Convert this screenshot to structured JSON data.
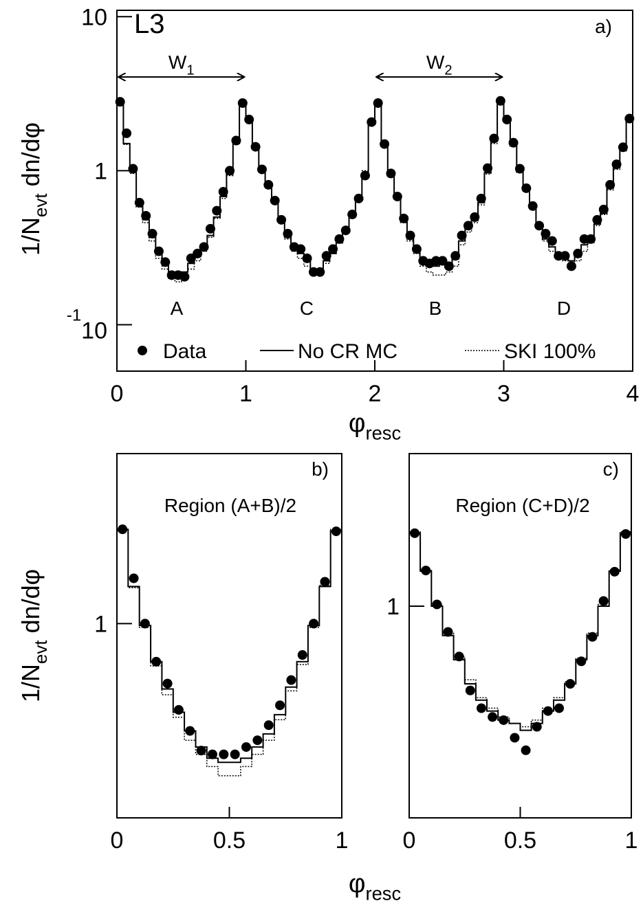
{
  "chart_data": [
    {
      "type": "histogram",
      "log_y": true,
      "legend": "bottom",
      "annotations": [
        {
          "text": "L3"
        },
        {
          "text": "a)"
        },
        {
          "text": "A"
        },
        {
          "text": "C"
        },
        {
          "text": "B"
        },
        {
          "text": "D"
        }
      ],
      "arrows": [
        {
          "text": "W",
          "sub": "1"
        },
        {
          "text": "W",
          "sub": "2"
        }
      ],
      "xlabel": {
        "text": "φ",
        "sub": "resc"
      },
      "ylabel": {
        "text": "1/N",
        "sub": "evt",
        "rest": " dn/dφ"
      },
      "xlim": [
        0,
        4
      ],
      "xticks": [
        0,
        1,
        2,
        3,
        4
      ],
      "ylim": [
        0.05,
        11
      ],
      "yticks": [
        10,
        1,
        {
          "value": 0.1,
          "label": "10",
          "exponent": "-1"
        }
      ],
      "x": [
        0.025,
        0.075,
        0.125,
        0.175,
        0.225,
        0.275,
        0.325,
        0.375,
        0.425,
        0.475,
        0.525,
        0.575,
        0.625,
        0.675,
        0.725,
        0.775,
        0.825,
        0.875,
        0.925,
        0.975,
        1.025,
        1.075,
        1.125,
        1.175,
        1.225,
        1.275,
        1.325,
        1.375,
        1.425,
        1.475,
        1.525,
        1.575,
        1.625,
        1.675,
        1.725,
        1.775,
        1.825,
        1.875,
        1.925,
        1.975,
        2.025,
        2.075,
        2.125,
        2.175,
        2.225,
        2.275,
        2.325,
        2.375,
        2.425,
        2.475,
        2.525,
        2.575,
        2.625,
        2.675,
        2.725,
        2.775,
        2.825,
        2.875,
        2.925,
        2.975,
        3.025,
        3.075,
        3.125,
        3.175,
        3.225,
        3.275,
        3.325,
        3.375,
        3.425,
        3.475,
        3.525,
        3.575,
        3.625,
        3.675,
        3.725,
        3.775,
        3.825,
        3.875,
        3.925,
        3.975
      ],
      "series": [
        {
          "name": "Data",
          "style": "points",
          "color": "#000000",
          "values": [
            2.8,
            1.75,
            1.03,
            0.62,
            0.51,
            0.39,
            0.3,
            0.255,
            0.21,
            0.21,
            0.205,
            0.27,
            0.29,
            0.32,
            0.42,
            0.55,
            0.73,
            1.0,
            1.57,
            2.75,
            2.15,
            1.43,
            1.02,
            0.81,
            0.64,
            0.48,
            0.39,
            0.32,
            0.31,
            0.27,
            0.22,
            0.22,
            0.28,
            0.31,
            0.36,
            0.41,
            0.52,
            0.66,
            0.93,
            2.07,
            2.75,
            1.49,
            0.96,
            0.68,
            0.49,
            0.38,
            0.31,
            0.26,
            0.25,
            0.26,
            0.26,
            0.24,
            0.28,
            0.38,
            0.44,
            0.5,
            0.66,
            1.04,
            1.62,
            2.84,
            2.15,
            1.52,
            1.03,
            0.77,
            0.59,
            0.44,
            0.39,
            0.35,
            0.28,
            0.28,
            0.24,
            0.29,
            0.36,
            0.36,
            0.48,
            0.56,
            0.81,
            1.1,
            1.42,
            2.18
          ]
        },
        {
          "name": "No CR MC",
          "style": "step",
          "color": "#000000",
          "values": [
            2.75,
            1.5,
            0.98,
            0.6,
            0.48,
            0.37,
            0.29,
            0.25,
            0.22,
            0.21,
            0.22,
            0.25,
            0.28,
            0.31,
            0.38,
            0.5,
            0.68,
            0.95,
            1.5,
            2.7,
            2.1,
            1.4,
            1.0,
            0.78,
            0.62,
            0.47,
            0.37,
            0.31,
            0.29,
            0.26,
            0.23,
            0.22,
            0.26,
            0.29,
            0.34,
            0.4,
            0.5,
            0.65,
            0.95,
            2.1,
            2.7,
            1.45,
            0.92,
            0.66,
            0.47,
            0.36,
            0.3,
            0.26,
            0.25,
            0.24,
            0.25,
            0.25,
            0.27,
            0.35,
            0.42,
            0.48,
            0.62,
            0.97,
            1.55,
            2.75,
            2.1,
            1.45,
            0.98,
            0.74,
            0.57,
            0.43,
            0.36,
            0.32,
            0.28,
            0.27,
            0.26,
            0.28,
            0.33,
            0.36,
            0.45,
            0.53,
            0.77,
            1.05,
            1.35,
            2.1
          ]
        },
        {
          "name": "SKI 100%",
          "style": "dotted",
          "color": "#000000",
          "values": [
            2.7,
            1.48,
            0.96,
            0.58,
            0.46,
            0.35,
            0.27,
            0.23,
            0.2,
            0.19,
            0.2,
            0.23,
            0.26,
            0.3,
            0.37,
            0.49,
            0.66,
            0.93,
            1.52,
            2.75,
            2.15,
            1.42,
            1.02,
            0.8,
            0.63,
            0.46,
            0.36,
            0.3,
            0.27,
            0.24,
            0.22,
            0.22,
            0.25,
            0.29,
            0.35,
            0.42,
            0.53,
            0.68,
            1.0,
            2.15,
            2.75,
            1.5,
            0.94,
            0.66,
            0.46,
            0.35,
            0.29,
            0.24,
            0.22,
            0.21,
            0.21,
            0.22,
            0.24,
            0.33,
            0.4,
            0.46,
            0.6,
            0.95,
            1.5,
            2.75,
            2.15,
            1.48,
            1.0,
            0.76,
            0.58,
            0.42,
            0.35,
            0.3,
            0.27,
            0.26,
            0.25,
            0.26,
            0.3,
            0.34,
            0.44,
            0.52,
            0.75,
            1.02,
            1.38,
            2.15
          ]
        }
      ]
    },
    {
      "type": "histogram",
      "log_y": true,
      "annotations": [
        {
          "text": "b)"
        },
        {
          "text": "Region (A+B)/2"
        }
      ],
      "xlabel": {
        "text": "φ",
        "sub": "resc"
      },
      "ylabel": {
        "text": "1/N",
        "sub": "evt",
        "rest": " dn/dφ"
      },
      "xlim": [
        0,
        1
      ],
      "xticks": [
        0,
        0.5,
        1
      ],
      "ylim": [
        0.12,
        6.4
      ],
      "yticks": [
        1
      ],
      "x": [
        0.025,
        0.075,
        0.125,
        0.175,
        0.225,
        0.275,
        0.325,
        0.375,
        0.425,
        0.475,
        0.525,
        0.575,
        0.625,
        0.675,
        0.725,
        0.775,
        0.825,
        0.875,
        0.925,
        0.975
      ],
      "series": [
        {
          "style": "points",
          "color": "#000000",
          "values": [
            2.8,
            1.64,
            1.0,
            0.66,
            0.52,
            0.39,
            0.31,
            0.25,
            0.24,
            0.24,
            0.24,
            0.26,
            0.28,
            0.33,
            0.41,
            0.54,
            0.71,
            1.0,
            1.58,
            2.74
          ]
        },
        {
          "style": "step",
          "color": "#000000",
          "values": [
            2.8,
            1.5,
            0.98,
            0.66,
            0.49,
            0.38,
            0.31,
            0.26,
            0.23,
            0.22,
            0.22,
            0.23,
            0.26,
            0.3,
            0.37,
            0.5,
            0.66,
            0.98,
            1.5,
            2.75
          ]
        },
        {
          "style": "dotted",
          "color": "#000000",
          "values": [
            2.75,
            1.48,
            0.96,
            0.63,
            0.46,
            0.36,
            0.28,
            0.24,
            0.21,
            0.19,
            0.19,
            0.21,
            0.24,
            0.28,
            0.35,
            0.48,
            0.64,
            0.96,
            1.52,
            2.8
          ]
        }
      ]
    },
    {
      "type": "histogram",
      "log_y": true,
      "annotations": [
        {
          "text": "c)"
        },
        {
          "text": "Region (C+D)/2"
        }
      ],
      "xlim": [
        0,
        1
      ],
      "xticks": [
        0,
        0.5,
        1
      ],
      "ylim": [
        0.094,
        5.5
      ],
      "yticks": [
        1
      ],
      "x": [
        0.025,
        0.075,
        0.125,
        0.175,
        0.225,
        0.275,
        0.325,
        0.375,
        0.425,
        0.475,
        0.525,
        0.575,
        0.625,
        0.675,
        0.725,
        0.775,
        0.825,
        0.875,
        0.925,
        0.975
      ],
      "series": [
        {
          "style": "points",
          "color": "#000000",
          "values": [
            2.26,
            1.49,
            1.02,
            0.75,
            0.57,
            0.39,
            0.32,
            0.29,
            0.28,
            0.23,
            0.2,
            0.26,
            0.31,
            0.32,
            0.42,
            0.54,
            0.71,
            1.06,
            1.47,
            2.24
          ]
        },
        {
          "style": "step",
          "color": "#000000",
          "values": [
            2.26,
            1.48,
            1.0,
            0.72,
            0.55,
            0.42,
            0.35,
            0.31,
            0.28,
            0.27,
            0.25,
            0.27,
            0.31,
            0.35,
            0.42,
            0.55,
            0.72,
            1.0,
            1.48,
            2.26
          ]
        },
        {
          "style": "dotted",
          "color": "#000000",
          "values": [
            2.3,
            1.5,
            1.02,
            0.74,
            0.57,
            0.44,
            0.36,
            0.32,
            0.29,
            0.27,
            0.26,
            0.28,
            0.32,
            0.36,
            0.43,
            0.56,
            0.74,
            1.02,
            1.5,
            2.3
          ]
        }
      ]
    }
  ]
}
